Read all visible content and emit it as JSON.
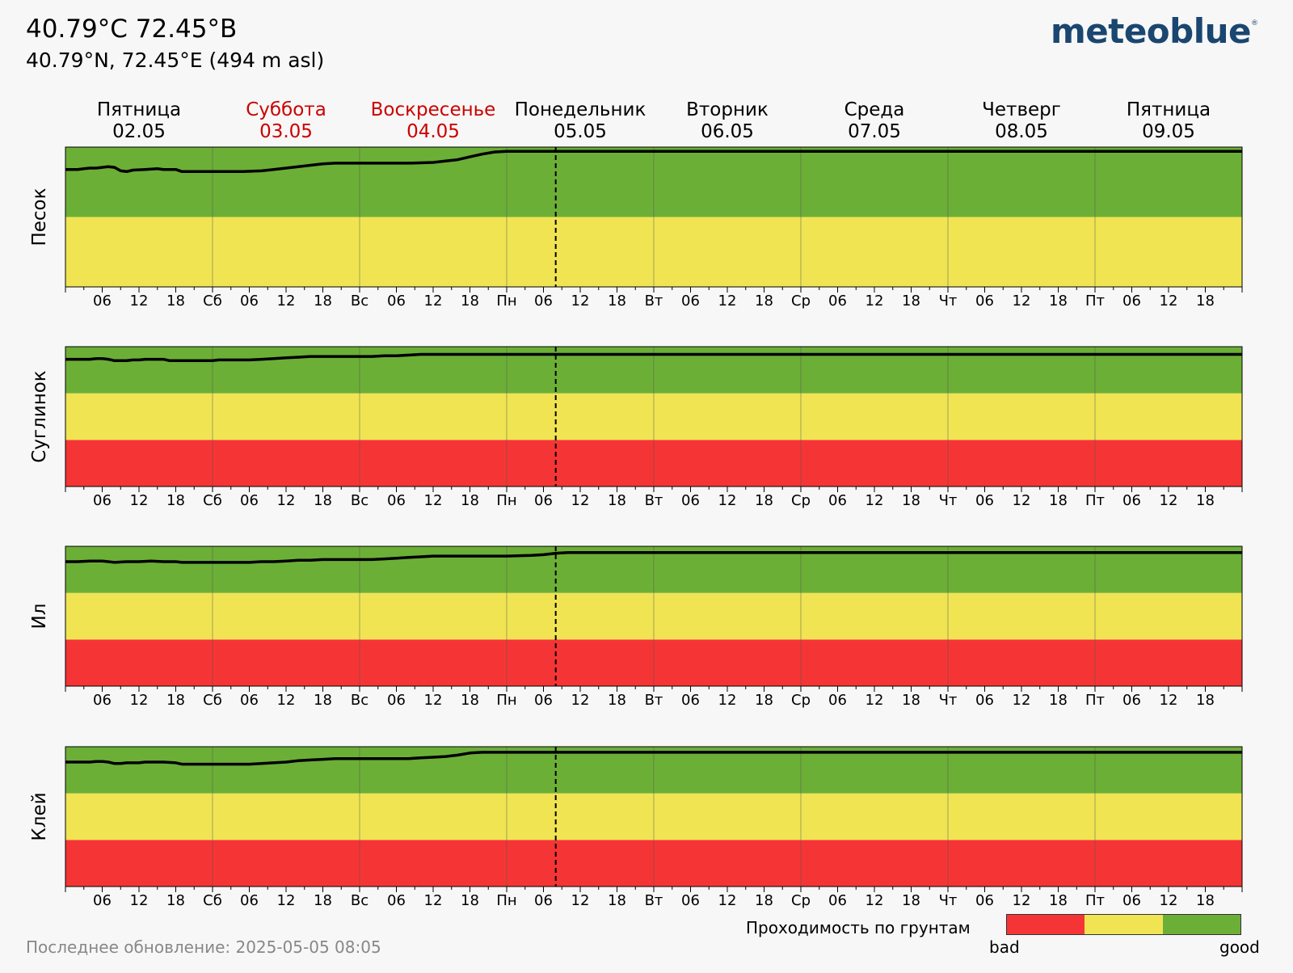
{
  "header": {
    "title": "40.79°C 72.45°B",
    "subtitle": "40.79°N, 72.45°E (494 m asl)",
    "brand": "meteoblue",
    "brand_mark": "®"
  },
  "footer": {
    "last_update": "Последнее обновление: 2025-05-05 08:05"
  },
  "legend": {
    "title": "Проходимость по грунтам",
    "bad_label": "bad",
    "good_label": "good",
    "colors": [
      "#f53535",
      "#f0e453",
      "#6caf37"
    ]
  },
  "colors": {
    "red": "#f53535",
    "yellow": "#f0e453",
    "green": "#6caf37",
    "weekend": "#cc0000"
  },
  "chart_data": {
    "type": "line",
    "days": [
      {
        "name": "Пятница",
        "date": "02.05",
        "abbr": "",
        "weekend": false
      },
      {
        "name": "Суббота",
        "date": "03.05",
        "abbr": "Сб",
        "weekend": true
      },
      {
        "name": "Воскресенье",
        "date": "04.05",
        "abbr": "Вс",
        "weekend": true
      },
      {
        "name": "Понедельник",
        "date": "05.05",
        "abbr": "Пн",
        "weekend": false
      },
      {
        "name": "Вторник",
        "date": "06.05",
        "abbr": "Вт",
        "weekend": false
      },
      {
        "name": "Среда",
        "date": "07.05",
        "abbr": "Ср",
        "weekend": false
      },
      {
        "name": "Четверг",
        "date": "08.05",
        "abbr": "Чт",
        "weekend": false
      },
      {
        "name": "Пятница",
        "date": "09.05",
        "abbr": "Пт",
        "weekend": false
      }
    ],
    "hour_ticks": [
      "06",
      "12",
      "18"
    ],
    "x_range_hours": [
      0,
      192
    ],
    "now_hour": 80,
    "y_range": [
      0,
      1
    ],
    "panels": [
      {
        "label": "Песок",
        "bands": [
          "yellow",
          "green"
        ],
        "points": [
          [
            0,
            0.84
          ],
          [
            2,
            0.84
          ],
          [
            3,
            0.845
          ],
          [
            4,
            0.85
          ],
          [
            5,
            0.85
          ],
          [
            6,
            0.855
          ],
          [
            7,
            0.86
          ],
          [
            8,
            0.855
          ],
          [
            9,
            0.83
          ],
          [
            10,
            0.825
          ],
          [
            11,
            0.835
          ],
          [
            13,
            0.84
          ],
          [
            15,
            0.845
          ],
          [
            16,
            0.84
          ],
          [
            18,
            0.84
          ],
          [
            19,
            0.825
          ],
          [
            22,
            0.825
          ],
          [
            26,
            0.825
          ],
          [
            29,
            0.825
          ],
          [
            32,
            0.83
          ],
          [
            34,
            0.84
          ],
          [
            36,
            0.85
          ],
          [
            38,
            0.86
          ],
          [
            40,
            0.87
          ],
          [
            42,
            0.88
          ],
          [
            44,
            0.885
          ],
          [
            48,
            0.885
          ],
          [
            52,
            0.885
          ],
          [
            56,
            0.885
          ],
          [
            60,
            0.89
          ],
          [
            62,
            0.9
          ],
          [
            64,
            0.91
          ],
          [
            66,
            0.93
          ],
          [
            68,
            0.95
          ],
          [
            70,
            0.965
          ],
          [
            72,
            0.97
          ],
          [
            192,
            0.97
          ]
        ]
      },
      {
        "label": "Суглинок",
        "bands": [
          "red",
          "yellow",
          "green"
        ],
        "points": [
          [
            0,
            0.91
          ],
          [
            2,
            0.91
          ],
          [
            4,
            0.91
          ],
          [
            5,
            0.915
          ],
          [
            6,
            0.915
          ],
          [
            7,
            0.91
          ],
          [
            8,
            0.9
          ],
          [
            9,
            0.9
          ],
          [
            10,
            0.9
          ],
          [
            11,
            0.905
          ],
          [
            12,
            0.905
          ],
          [
            13,
            0.91
          ],
          [
            15,
            0.91
          ],
          [
            16,
            0.91
          ],
          [
            17,
            0.9
          ],
          [
            20,
            0.9
          ],
          [
            22,
            0.9
          ],
          [
            24,
            0.9
          ],
          [
            25,
            0.905
          ],
          [
            28,
            0.905
          ],
          [
            30,
            0.905
          ],
          [
            32,
            0.91
          ],
          [
            34,
            0.915
          ],
          [
            36,
            0.92
          ],
          [
            38,
            0.925
          ],
          [
            40,
            0.93
          ],
          [
            44,
            0.93
          ],
          [
            48,
            0.93
          ],
          [
            50,
            0.93
          ],
          [
            52,
            0.935
          ],
          [
            54,
            0.935
          ],
          [
            56,
            0.94
          ],
          [
            58,
            0.945
          ],
          [
            192,
            0.945
          ]
        ]
      },
      {
        "label": "Ил",
        "bands": [
          "red",
          "yellow",
          "green"
        ],
        "points": [
          [
            0,
            0.89
          ],
          [
            2,
            0.89
          ],
          [
            4,
            0.895
          ],
          [
            6,
            0.895
          ],
          [
            8,
            0.885
          ],
          [
            10,
            0.89
          ],
          [
            12,
            0.89
          ],
          [
            14,
            0.895
          ],
          [
            16,
            0.89
          ],
          [
            18,
            0.89
          ],
          [
            19,
            0.885
          ],
          [
            22,
            0.885
          ],
          [
            26,
            0.885
          ],
          [
            30,
            0.885
          ],
          [
            32,
            0.89
          ],
          [
            34,
            0.89
          ],
          [
            36,
            0.895
          ],
          [
            38,
            0.9
          ],
          [
            40,
            0.9
          ],
          [
            42,
            0.905
          ],
          [
            46,
            0.905
          ],
          [
            50,
            0.905
          ],
          [
            52,
            0.91
          ],
          [
            54,
            0.915
          ],
          [
            56,
            0.92
          ],
          [
            58,
            0.925
          ],
          [
            60,
            0.93
          ],
          [
            64,
            0.93
          ],
          [
            68,
            0.93
          ],
          [
            72,
            0.93
          ],
          [
            76,
            0.935
          ],
          [
            78,
            0.94
          ],
          [
            80,
            0.95
          ],
          [
            82,
            0.955
          ],
          [
            192,
            0.955
          ]
        ]
      },
      {
        "label": "Клей",
        "bands": [
          "red",
          "yellow",
          "green"
        ],
        "points": [
          [
            0,
            0.89
          ],
          [
            2,
            0.89
          ],
          [
            4,
            0.89
          ],
          [
            5,
            0.895
          ],
          [
            6,
            0.895
          ],
          [
            7,
            0.89
          ],
          [
            8,
            0.88
          ],
          [
            9,
            0.88
          ],
          [
            10,
            0.885
          ],
          [
            12,
            0.885
          ],
          [
            13,
            0.89
          ],
          [
            16,
            0.89
          ],
          [
            18,
            0.885
          ],
          [
            19,
            0.875
          ],
          [
            22,
            0.875
          ],
          [
            26,
            0.875
          ],
          [
            30,
            0.875
          ],
          [
            32,
            0.88
          ],
          [
            34,
            0.885
          ],
          [
            36,
            0.89
          ],
          [
            38,
            0.9
          ],
          [
            40,
            0.905
          ],
          [
            42,
            0.91
          ],
          [
            44,
            0.915
          ],
          [
            48,
            0.915
          ],
          [
            52,
            0.915
          ],
          [
            56,
            0.915
          ],
          [
            58,
            0.92
          ],
          [
            60,
            0.925
          ],
          [
            62,
            0.93
          ],
          [
            64,
            0.94
          ],
          [
            66,
            0.955
          ],
          [
            68,
            0.96
          ],
          [
            192,
            0.96
          ]
        ]
      }
    ]
  }
}
